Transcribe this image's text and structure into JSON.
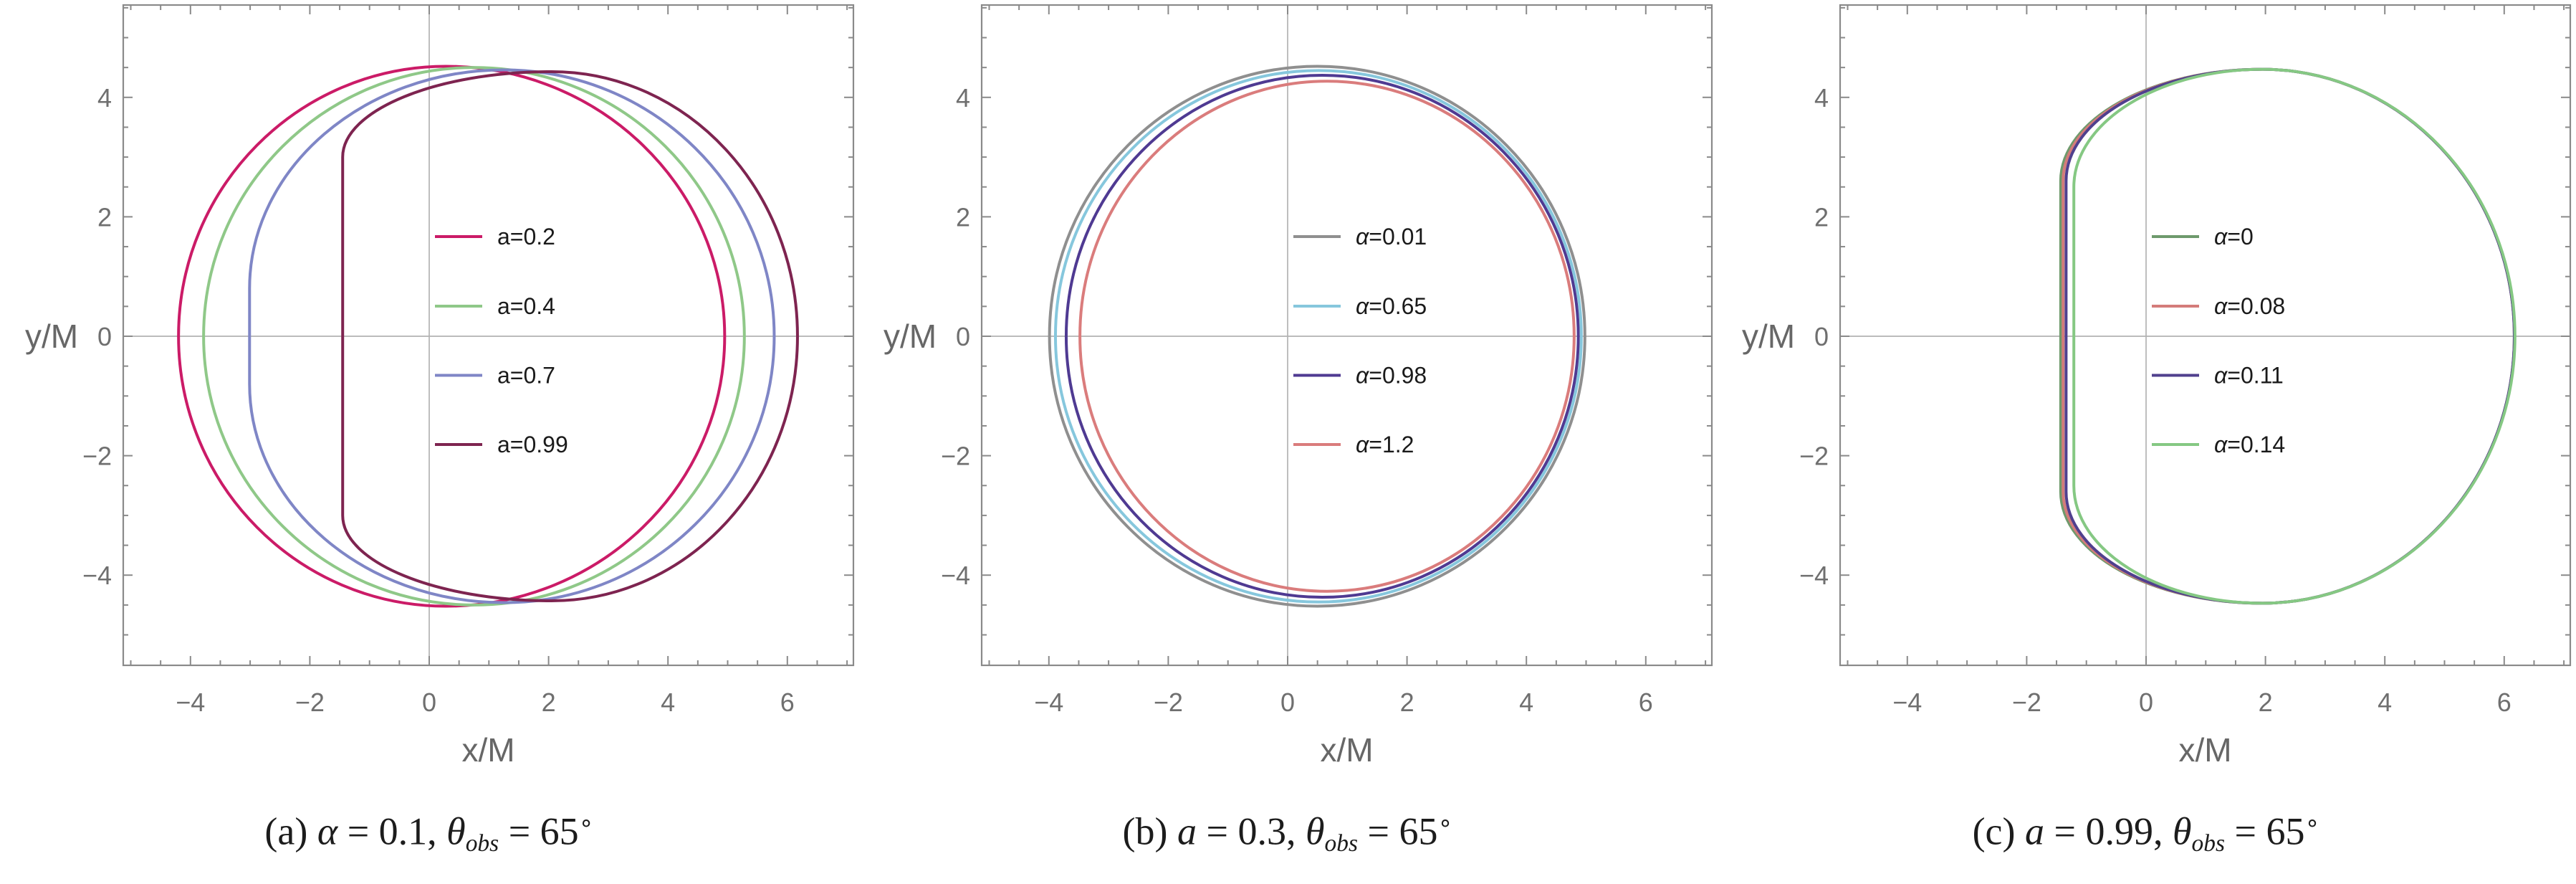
{
  "figure": {
    "background": "#ffffff",
    "frame_color": "#8a8a8a",
    "grid_color": "#b3b3b3",
    "tick_label_color": "#6f6f6f",
    "axis_label_color": "#676767",
    "caption_color": "#1c1c1c"
  },
  "chart_data": [
    {
      "id": "a",
      "type": "line",
      "xlabel": "x/M",
      "ylabel": "y/M",
      "x_range": [
        -5.13,
        7.11
      ],
      "y_range": [
        -5.51,
        5.55
      ],
      "x_ticks": [
        {
          "v": -4,
          "label": "−4"
        },
        {
          "v": -2,
          "label": "−2"
        },
        {
          "v": 0,
          "label": "0"
        },
        {
          "v": 2,
          "label": "2"
        },
        {
          "v": 4,
          "label": "4"
        },
        {
          "v": 6,
          "label": "6"
        }
      ],
      "y_ticks": [
        {
          "v": -4,
          "label": "−4"
        },
        {
          "v": -2,
          "label": "−2"
        },
        {
          "v": 0,
          "label": "0"
        },
        {
          "v": 2,
          "label": "2"
        },
        {
          "v": 4,
          "label": "4"
        }
      ],
      "minor_tick_step": 0.5,
      "grid": "axes-only",
      "legend_italic_var": false,
      "legend_position": "inside-center",
      "series": [
        {
          "label_var": "a",
          "label_rest": "=0.2",
          "color": "#cb1b67",
          "xmin": -4.2,
          "xmax": 4.95,
          "ymax": 4.52,
          "xtop": 0.28,
          "yflat": 0
        },
        {
          "label_var": "a",
          "label_rest": "=0.4",
          "color": "#8fc888",
          "xmin": -3.78,
          "xmax": 5.28,
          "ymax": 4.5,
          "xtop": 0.75,
          "yflat": 0
        },
        {
          "label_var": "a",
          "label_rest": "=0.7",
          "color": "#7f86c6",
          "xmin": -3.01,
          "xmax": 5.78,
          "ymax": 4.46,
          "xtop": 1.25,
          "yflat": 0.8
        },
        {
          "label_var": "a",
          "label_rest": "=0.99",
          "color": "#7e2450",
          "xmin": -1.45,
          "xmax": 6.17,
          "ymax": 4.43,
          "xtop": 2.05,
          "yflat": 3.0
        }
      ],
      "caption": {
        "parts": [
          {
            "t": "(a) "
          },
          {
            "t": "α",
            "i": true
          },
          {
            "t": " = 0.1, "
          },
          {
            "t": "θ",
            "i": true
          },
          {
            "t": "obs",
            "i": true,
            "sub": true
          },
          {
            "t": " = 65"
          },
          {
            "t": "∘",
            "sup": true
          }
        ]
      }
    },
    {
      "id": "b",
      "type": "line",
      "xlabel": "x/M",
      "ylabel": "y/M",
      "x_range": [
        -5.13,
        7.11
      ],
      "y_range": [
        -5.51,
        5.55
      ],
      "x_ticks": [
        {
          "v": -4,
          "label": "−4"
        },
        {
          "v": -2,
          "label": "−2"
        },
        {
          "v": 0,
          "label": "0"
        },
        {
          "v": 2,
          "label": "2"
        },
        {
          "v": 4,
          "label": "4"
        },
        {
          "v": 6,
          "label": "6"
        }
      ],
      "y_ticks": [
        {
          "v": -4,
          "label": "−4"
        },
        {
          "v": -2,
          "label": "−2"
        },
        {
          "v": 0,
          "label": "0"
        },
        {
          "v": 2,
          "label": "2"
        },
        {
          "v": 4,
          "label": "4"
        }
      ],
      "minor_tick_step": 0.5,
      "grid": "axes-only",
      "legend_italic_var": true,
      "legend_position": "inside-center",
      "series": [
        {
          "label_var": "α",
          "label_rest": "=0.01",
          "color": "#8f8f8f",
          "xmin": -3.99,
          "xmax": 4.98,
          "ymax": 4.52,
          "xtop": 0.5,
          "yflat": 0
        },
        {
          "label_var": "α",
          "label_rest": "=0.65",
          "color": "#86c7dd",
          "xmin": -3.89,
          "xmax": 4.92,
          "ymax": 4.45,
          "xtop": 0.52,
          "yflat": 0
        },
        {
          "label_var": "α",
          "label_rest": "=0.98",
          "color": "#4f3a92",
          "xmin": -3.71,
          "xmax": 4.87,
          "ymax": 4.37,
          "xtop": 0.58,
          "yflat": 0
        },
        {
          "label_var": "α",
          "label_rest": "=1.2",
          "color": "#da7c7c",
          "xmin": -3.48,
          "xmax": 4.8,
          "ymax": 4.27,
          "xtop": 0.66,
          "yflat": 0
        }
      ],
      "caption": {
        "parts": [
          {
            "t": "(b) "
          },
          {
            "t": "a",
            "i": true
          },
          {
            "t": " = 0.3, "
          },
          {
            "t": "θ",
            "i": true
          },
          {
            "t": "obs",
            "i": true,
            "sub": true
          },
          {
            "t": " = 65"
          },
          {
            "t": "∘",
            "sup": true
          }
        ]
      }
    },
    {
      "id": "c",
      "type": "line",
      "xlabel": "x/M",
      "ylabel": "y/M",
      "x_range": [
        -5.13,
        7.11
      ],
      "y_range": [
        -5.51,
        5.55
      ],
      "x_ticks": [
        {
          "v": -4,
          "label": "−4"
        },
        {
          "v": -2,
          "label": "−2"
        },
        {
          "v": 0,
          "label": "0"
        },
        {
          "v": 2,
          "label": "2"
        },
        {
          "v": 4,
          "label": "4"
        },
        {
          "v": 6,
          "label": "6"
        }
      ],
      "y_ticks": [
        {
          "v": -4,
          "label": "−4"
        },
        {
          "v": -2,
          "label": "−2"
        },
        {
          "v": 0,
          "label": "0"
        },
        {
          "v": 2,
          "label": "2"
        },
        {
          "v": 4,
          "label": "4"
        }
      ],
      "minor_tick_step": 0.5,
      "grid": "axes-only",
      "legend_italic_var": true,
      "legend_position": "inside-center",
      "series": [
        {
          "label_var": "α",
          "label_rest": "=0",
          "color": "#6e9a6c",
          "xmin": -1.43,
          "xmax": 6.17,
          "ymax": 4.47,
          "xtop": 1.95,
          "yflat": 2.6
        },
        {
          "label_var": "α",
          "label_rest": "=0.08",
          "color": "#d47c7a",
          "xmin": -1.39,
          "xmax": 6.17,
          "ymax": 4.47,
          "xtop": 1.95,
          "yflat": 2.6
        },
        {
          "label_var": "α",
          "label_rest": "=0.11",
          "color": "#50408e",
          "xmin": -1.34,
          "xmax": 6.17,
          "ymax": 4.47,
          "xtop": 1.95,
          "yflat": 2.6
        },
        {
          "label_var": "α",
          "label_rest": "=0.14",
          "color": "#85c883",
          "xmin": -1.21,
          "xmax": 6.18,
          "ymax": 4.47,
          "xtop": 1.95,
          "yflat": 2.5
        }
      ],
      "caption": {
        "parts": [
          {
            "t": "(c) "
          },
          {
            "t": "a",
            "i": true
          },
          {
            "t": " = 0.99, "
          },
          {
            "t": "θ",
            "i": true
          },
          {
            "t": "obs",
            "i": true,
            "sub": true
          },
          {
            "t": " = 65"
          },
          {
            "t": "∘",
            "sup": true
          }
        ]
      }
    }
  ]
}
